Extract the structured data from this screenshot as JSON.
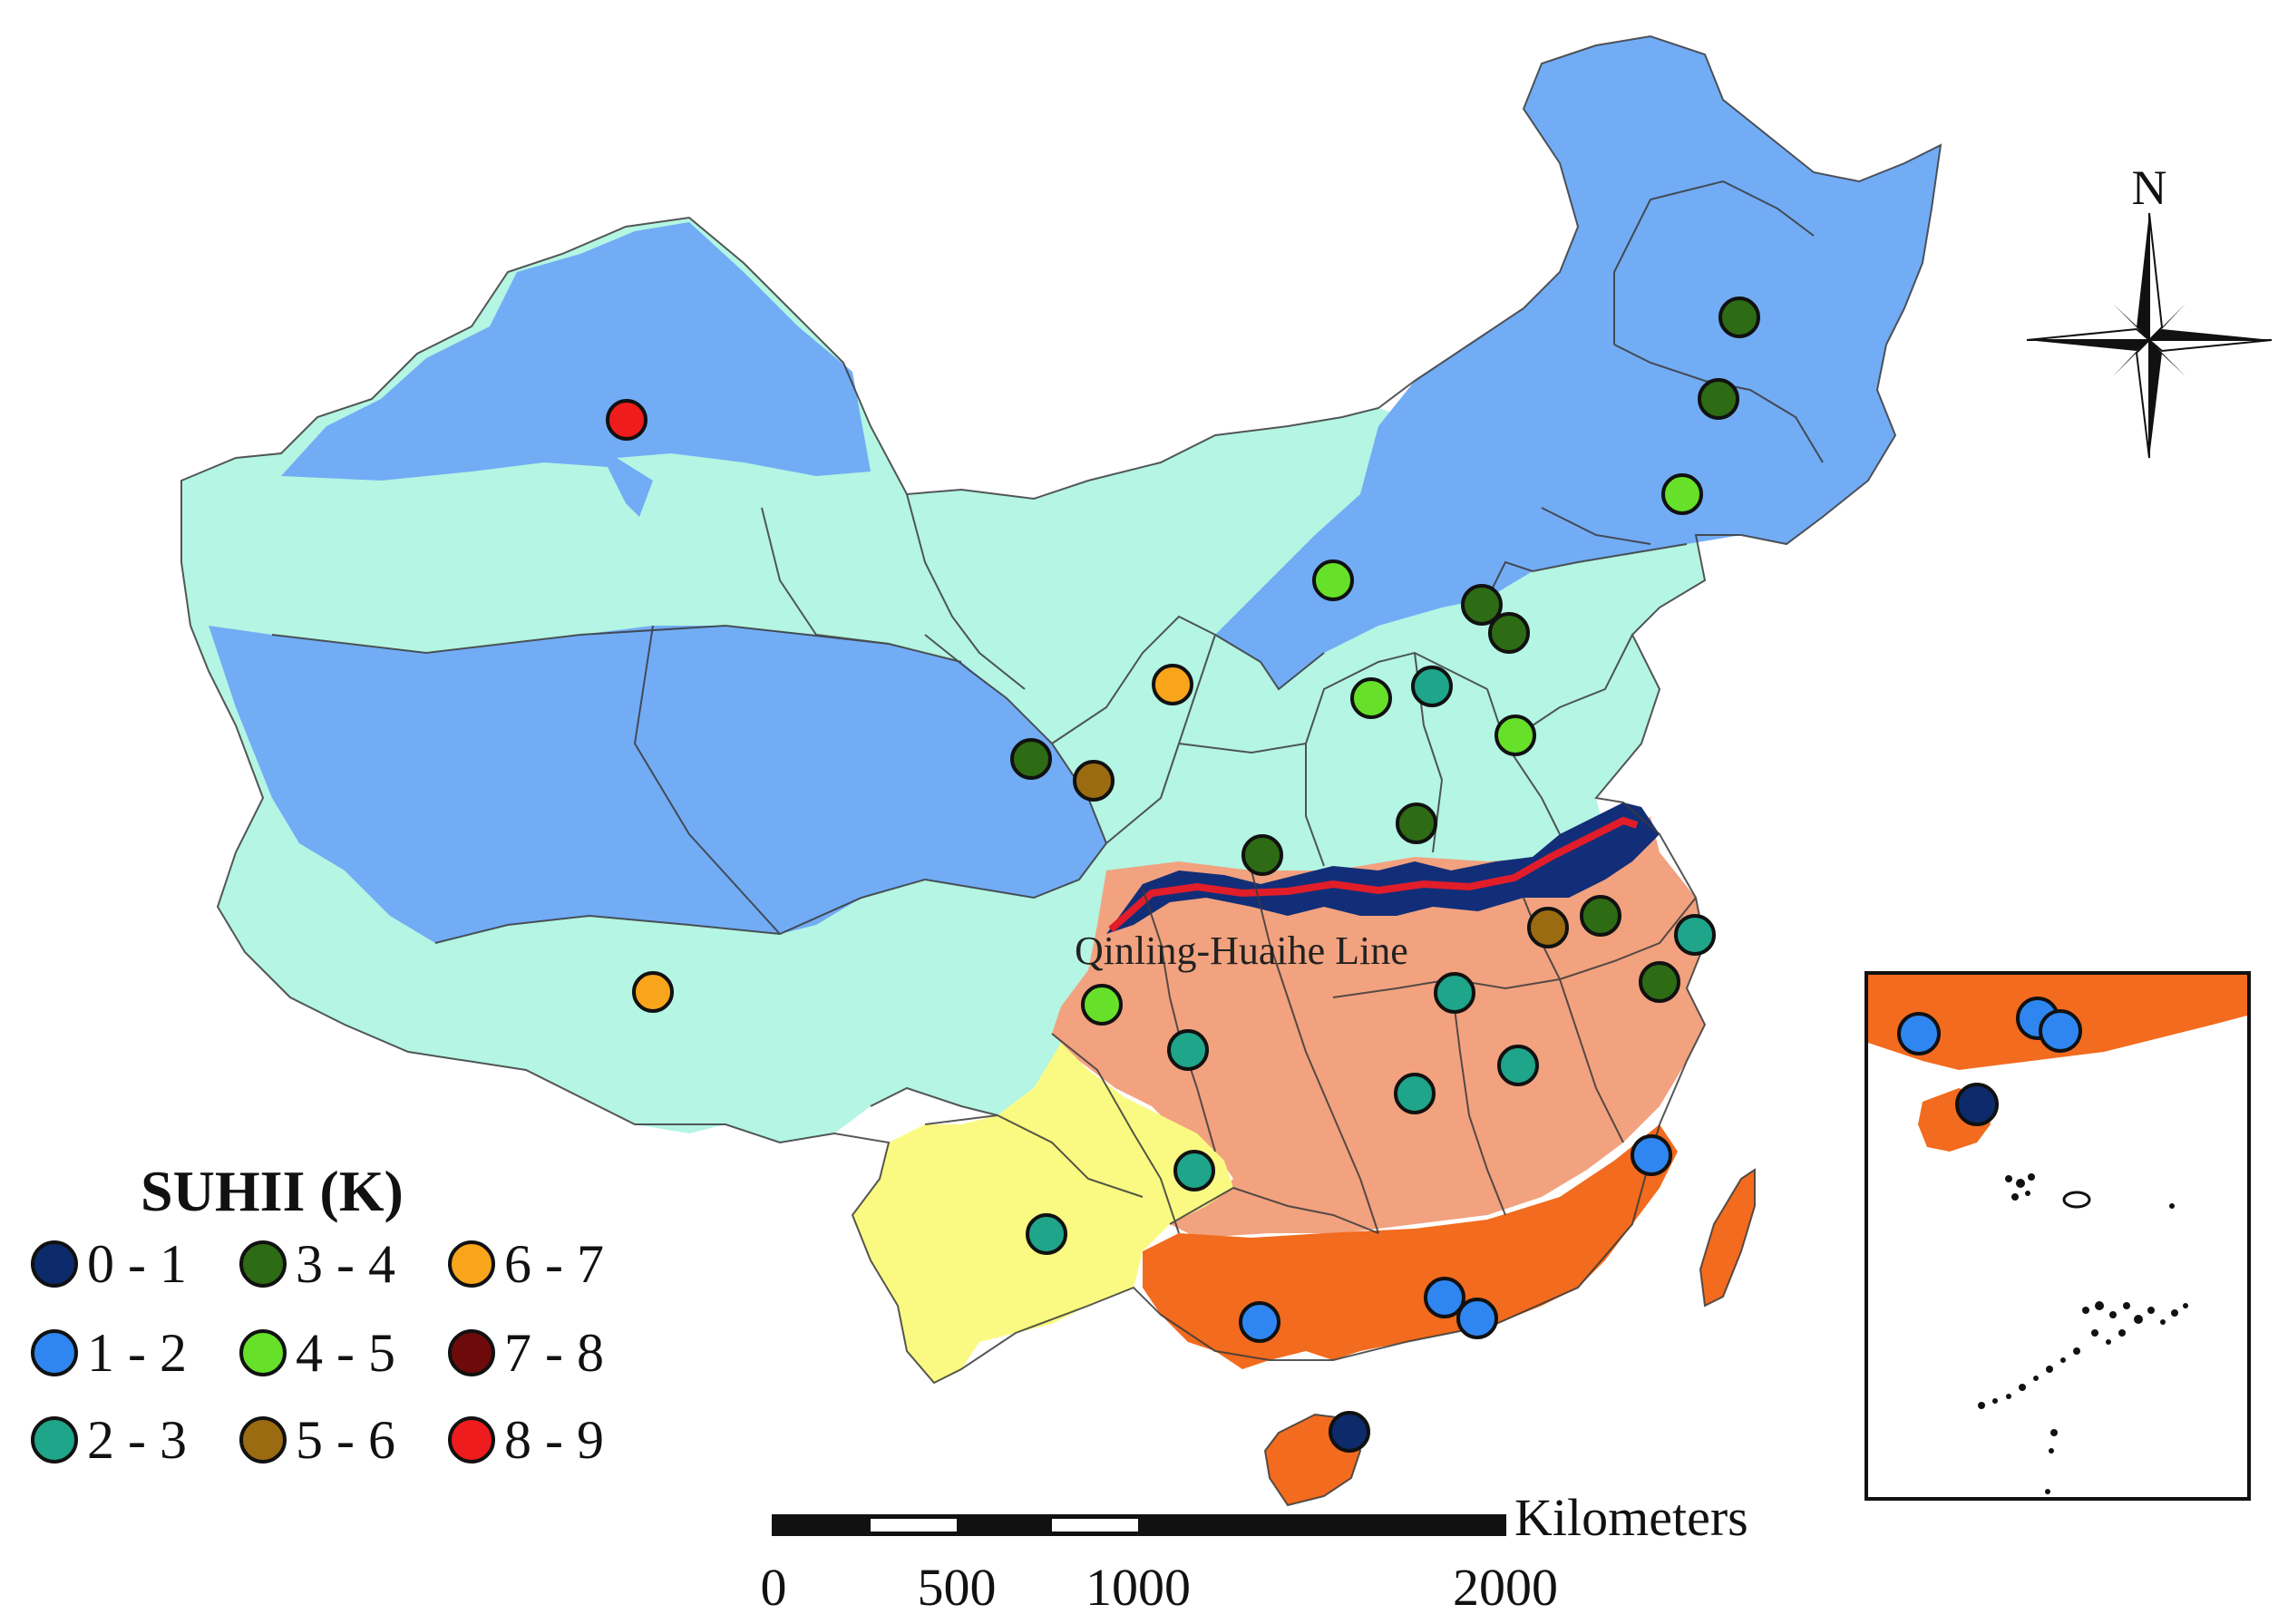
{
  "legend": {
    "title": "SUHII (K)",
    "classes": [
      {
        "label": "0 - 1",
        "color": "#0d2a6b"
      },
      {
        "label": "1 - 2",
        "color": "#2f86f0"
      },
      {
        "label": "2 - 3",
        "color": "#1ea58a"
      },
      {
        "label": "3 - 4",
        "color": "#2d6b14"
      },
      {
        "label": "4 - 5",
        "color": "#66e029"
      },
      {
        "label": "5 - 6",
        "color": "#9b6b12"
      },
      {
        "label": "6 - 7",
        "color": "#f9a51b"
      },
      {
        "label": "7 - 8",
        "color": "#6e0a0a"
      },
      {
        "label": "8 - 9",
        "color": "#ee1c1c"
      }
    ]
  },
  "map_labels": {
    "qinling_huaihe": "Qinling-Huaihe Line",
    "north_arrow": "N"
  },
  "scale_bar": {
    "unit": "Kilometers",
    "ticks": [
      "0",
      "500",
      "1000",
      "2000"
    ]
  },
  "zone_colors": {
    "cold_blue": "#72acf5",
    "temperate_mint": "#b4f5e3",
    "subtropical_salmon": "#f2a27f",
    "tropical_orange": "#f26b1e",
    "plateau_yellow": "#fafa82",
    "qinling_band": "#122e78",
    "qinling_line": "#e11d2a"
  }
}
